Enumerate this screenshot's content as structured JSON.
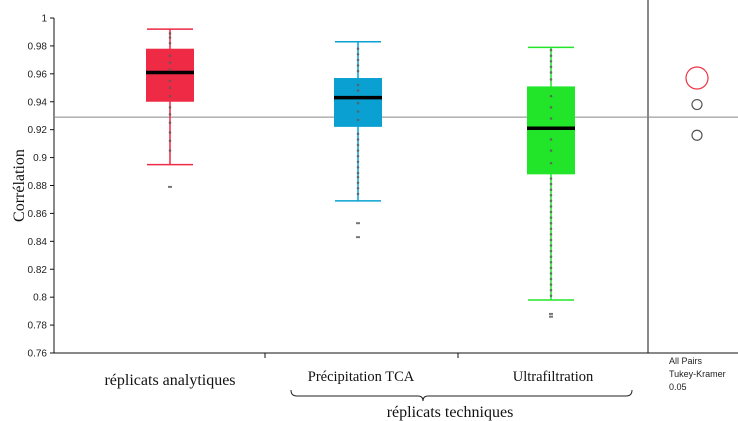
{
  "chart_data": {
    "type": "boxplot",
    "ylabel": "Corrélation",
    "ylim": [
      0.76,
      1.0
    ],
    "yticks": [
      1,
      0.98,
      0.96,
      0.94,
      0.92,
      0.9,
      0.88,
      0.86,
      0.84,
      0.82,
      0.8,
      0.78,
      0.76
    ],
    "ytick_labels": [
      "1",
      "0.98",
      "0.96",
      "0.94",
      "0.92",
      "0.9",
      "0.88",
      "0.86",
      "0.84",
      "0.82",
      "0.8",
      "0.78",
      "0.76"
    ],
    "reference_line": 0.929,
    "group_label": "réplicats techniques",
    "categories": [
      "réplicats analytiques",
      "Précipitation TCA",
      "Ultrafiltration"
    ],
    "series": [
      {
        "category": "réplicats analytiques",
        "color": "#ee2a45",
        "whisker_low": 0.895,
        "q1": 0.94,
        "median": 0.961,
        "q3": 0.978,
        "whisker_high": 0.992,
        "outliers": [
          0.879
        ],
        "points": [
          0.905,
          0.912,
          0.918,
          0.925,
          0.931,
          0.936,
          0.944,
          0.95,
          0.955,
          0.963,
          0.968,
          0.973,
          0.982,
          0.986,
          0.989
        ]
      },
      {
        "category": "Précipitation TCA",
        "color": "#0aa0d2",
        "whisker_low": 0.869,
        "q1": 0.922,
        "median": 0.943,
        "q3": 0.957,
        "whisker_high": 0.983,
        "outliers": [
          0.853,
          0.843
        ],
        "points": [
          0.874,
          0.878,
          0.882,
          0.886,
          0.889,
          0.893,
          0.897,
          0.901,
          0.905,
          0.909,
          0.913,
          0.917,
          0.927,
          0.933,
          0.939,
          0.948,
          0.952,
          0.962,
          0.966,
          0.97,
          0.974,
          0.978
        ]
      },
      {
        "category": "Ultrafiltration",
        "color": "#22e52a",
        "whisker_low": 0.798,
        "q1": 0.888,
        "median": 0.921,
        "q3": 0.951,
        "whisker_high": 0.979,
        "outliers": [
          0.788,
          0.786
        ],
        "points": [
          0.801,
          0.805,
          0.809,
          0.813,
          0.817,
          0.821,
          0.825,
          0.829,
          0.833,
          0.837,
          0.841,
          0.845,
          0.849,
          0.853,
          0.857,
          0.861,
          0.865,
          0.869,
          0.873,
          0.877,
          0.881,
          0.885,
          0.896,
          0.905,
          0.913,
          0.928,
          0.936,
          0.944,
          0.956,
          0.961,
          0.965,
          0.969,
          0.973,
          0.977
        ]
      }
    ],
    "comparison_circles": [
      {
        "center": 0.957,
        "color": "#ee3344"
      },
      {
        "center": 0.938,
        "color": "#555555"
      },
      {
        "center": 0.916,
        "color": "#555555"
      }
    ],
    "side_panel_text": [
      "All Pairs",
      "Tukey-Kramer",
      "0.05"
    ]
  }
}
